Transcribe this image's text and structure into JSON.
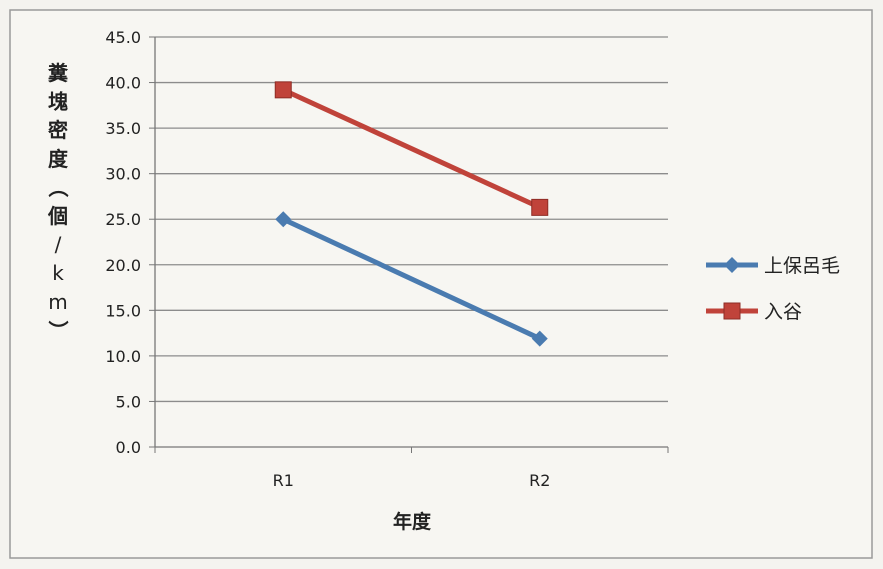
{
  "chart_data": {
    "type": "line",
    "title": "",
    "xlabel": "年度",
    "ylabel": "糞塊密度（個/km）",
    "ylim": [
      0,
      45
    ],
    "ytick_step": 5,
    "ytick_labels": [
      "0.0",
      "5.0",
      "10.0",
      "15.0",
      "20.0",
      "25.0",
      "30.0",
      "35.0",
      "40.0",
      "45.0"
    ],
    "categories": [
      "R1",
      "R2"
    ],
    "grid": true,
    "legend_position": "right",
    "series": [
      {
        "name": "上保呂毛",
        "values": [
          25.0,
          11.9
        ],
        "color": "#4a7bb0",
        "marker": "diamond"
      },
      {
        "name": "入谷",
        "values": [
          39.2,
          26.3
        ],
        "color": "#c0433a",
        "marker": "square"
      }
    ]
  }
}
